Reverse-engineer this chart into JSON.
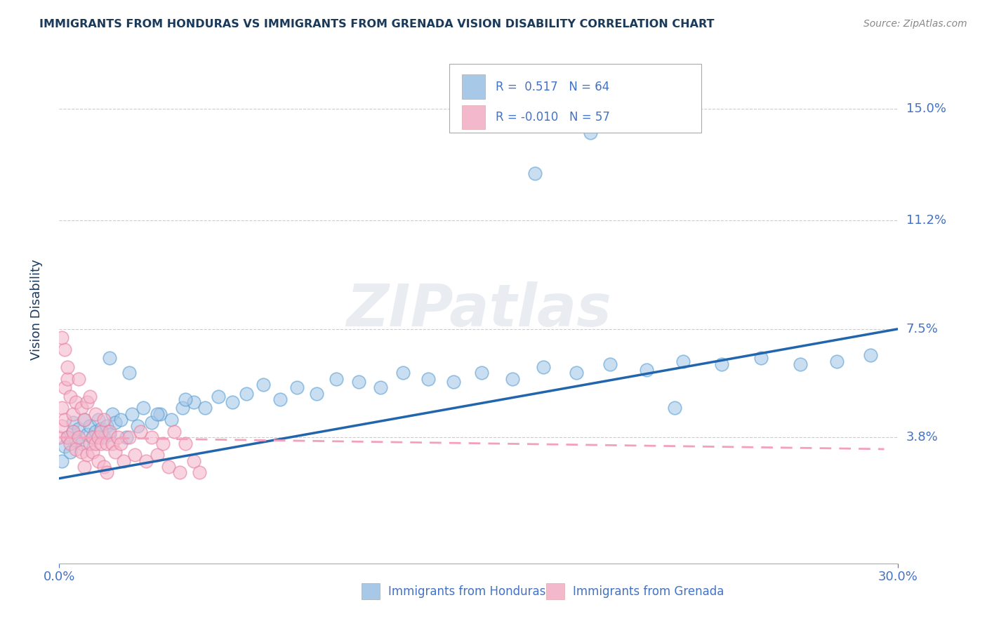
{
  "title": "IMMIGRANTS FROM HONDURAS VS IMMIGRANTS FROM GRENADA VISION DISABILITY CORRELATION CHART",
  "source": "Source: ZipAtlas.com",
  "ylabel": "Vision Disability",
  "xlim": [
    0.0,
    0.3
  ],
  "ylim": [
    -0.005,
    0.168
  ],
  "xtick_labels": [
    "0.0%",
    "30.0%"
  ],
  "xtick_positions": [
    0.0,
    0.3
  ],
  "ytick_labels": [
    "3.8%",
    "7.5%",
    "11.2%",
    "15.0%"
  ],
  "ytick_positions": [
    0.038,
    0.075,
    0.112,
    0.15
  ],
  "watermark": "ZIPatlas",
  "blue_color": "#a8c8e8",
  "pink_color": "#f4b8cc",
  "blue_edge_color": "#5a9fd4",
  "pink_edge_color": "#e880a0",
  "blue_line_color": "#2166ac",
  "pink_line_color": "#f4a0bc",
  "title_color": "#1a3a5c",
  "label_color": "#4472c4",
  "background_color": "#ffffff",
  "grid_color": "#cccccc",
  "honduras_x": [
    0.001,
    0.002,
    0.003,
    0.004,
    0.005,
    0.005,
    0.006,
    0.007,
    0.008,
    0.009,
    0.01,
    0.011,
    0.012,
    0.013,
    0.014,
    0.015,
    0.016,
    0.017,
    0.018,
    0.019,
    0.02,
    0.022,
    0.024,
    0.026,
    0.028,
    0.03,
    0.033,
    0.036,
    0.04,
    0.044,
    0.048,
    0.052,
    0.057,
    0.062,
    0.067,
    0.073,
    0.079,
    0.085,
    0.092,
    0.099,
    0.107,
    0.115,
    0.123,
    0.132,
    0.141,
    0.151,
    0.162,
    0.173,
    0.185,
    0.197,
    0.21,
    0.223,
    0.237,
    0.251,
    0.265,
    0.278,
    0.29,
    0.018,
    0.025,
    0.035,
    0.045,
    0.17,
    0.19,
    0.22
  ],
  "honduras_y": [
    0.03,
    0.035,
    0.038,
    0.033,
    0.04,
    0.043,
    0.037,
    0.041,
    0.036,
    0.044,
    0.039,
    0.042,
    0.038,
    0.04,
    0.044,
    0.041,
    0.038,
    0.042,
    0.039,
    0.046,
    0.043,
    0.044,
    0.038,
    0.046,
    0.042,
    0.048,
    0.043,
    0.046,
    0.044,
    0.048,
    0.05,
    0.048,
    0.052,
    0.05,
    0.053,
    0.056,
    0.051,
    0.055,
    0.053,
    0.058,
    0.057,
    0.055,
    0.06,
    0.058,
    0.057,
    0.06,
    0.058,
    0.062,
    0.06,
    0.063,
    0.061,
    0.064,
    0.063,
    0.065,
    0.063,
    0.064,
    0.066,
    0.065,
    0.06,
    0.046,
    0.051,
    0.128,
    0.142,
    0.048
  ],
  "grenada_x": [
    0.0,
    0.001,
    0.001,
    0.002,
    0.002,
    0.003,
    0.003,
    0.004,
    0.004,
    0.005,
    0.005,
    0.006,
    0.006,
    0.007,
    0.007,
    0.008,
    0.008,
    0.009,
    0.009,
    0.01,
    0.01,
    0.011,
    0.011,
    0.012,
    0.012,
    0.013,
    0.013,
    0.014,
    0.014,
    0.015,
    0.015,
    0.016,
    0.016,
    0.017,
    0.017,
    0.018,
    0.019,
    0.02,
    0.021,
    0.022,
    0.023,
    0.025,
    0.027,
    0.029,
    0.031,
    0.033,
    0.035,
    0.037,
    0.039,
    0.041,
    0.043,
    0.045,
    0.048,
    0.05,
    0.002,
    0.003,
    0.001
  ],
  "grenada_y": [
    0.038,
    0.042,
    0.048,
    0.055,
    0.044,
    0.038,
    0.058,
    0.036,
    0.052,
    0.04,
    0.046,
    0.034,
    0.05,
    0.038,
    0.058,
    0.033,
    0.048,
    0.028,
    0.044,
    0.032,
    0.05,
    0.036,
    0.052,
    0.038,
    0.033,
    0.036,
    0.046,
    0.038,
    0.03,
    0.04,
    0.036,
    0.028,
    0.044,
    0.036,
    0.026,
    0.04,
    0.036,
    0.033,
    0.038,
    0.036,
    0.03,
    0.038,
    0.032,
    0.04,
    0.03,
    0.038,
    0.032,
    0.036,
    0.028,
    0.04,
    0.026,
    0.036,
    0.03,
    0.026,
    0.068,
    0.062,
    0.072
  ],
  "blue_trend_x": [
    0.0,
    0.3
  ],
  "blue_trend_y": [
    0.024,
    0.075
  ],
  "pink_trend_x": [
    0.0,
    0.295
  ],
  "pink_trend_y": [
    0.038,
    0.034
  ]
}
